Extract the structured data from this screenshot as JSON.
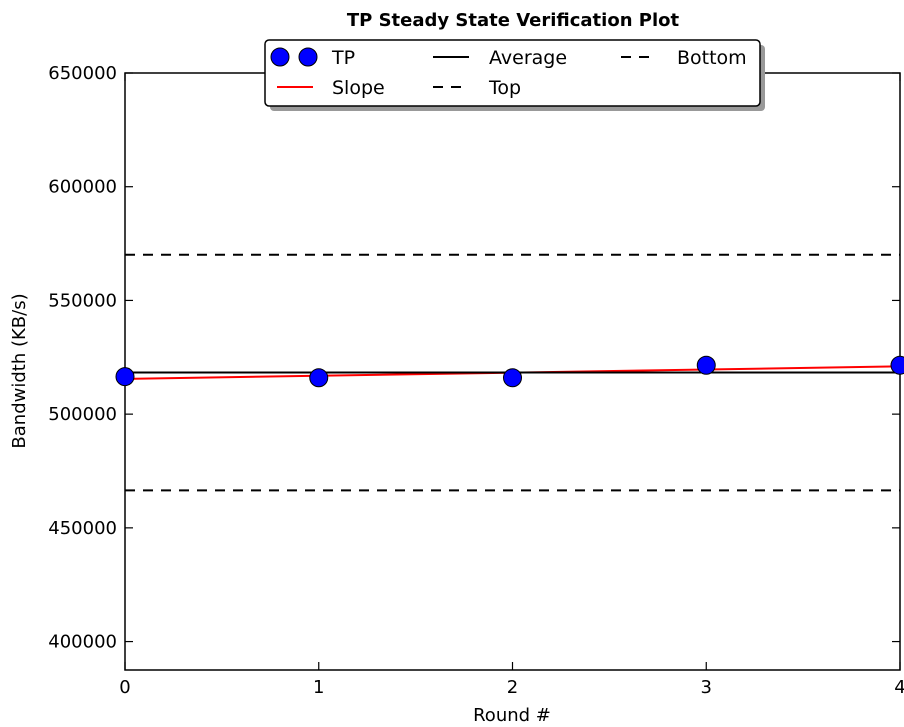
{
  "chart_data": {
    "type": "line",
    "title": "TP Steady State Verification Plot",
    "xlabel": "Round #",
    "ylabel": "Bandwidth (KB/s)",
    "xlim": [
      0,
      4
    ],
    "ylim": [
      387500,
      650000
    ],
    "xticks": [
      0,
      1,
      2,
      3,
      4
    ],
    "yticks": [
      400000,
      450000,
      500000,
      550000,
      600000,
      650000
    ],
    "xtick_labels": [
      "0",
      "1",
      "2",
      "3",
      "4"
    ],
    "ytick_labels": [
      "400000",
      "450000",
      "500000",
      "550000",
      "600000",
      "650000"
    ],
    "grid": false,
    "legend_position": "top-center",
    "series": [
      {
        "name": "TP",
        "style": "markers",
        "color": "#0000ff",
        "x": [
          0,
          1,
          2,
          3,
          4
        ],
        "y": [
          516500,
          516000,
          516000,
          521500,
          521500
        ]
      },
      {
        "name": "Slope",
        "style": "solid",
        "color": "#ff0000",
        "x": [
          0,
          4
        ],
        "y": [
          515500,
          521000
        ]
      },
      {
        "name": "Average",
        "style": "solid",
        "color": "#000000",
        "x": [
          0,
          4
        ],
        "y": [
          518300,
          518300
        ]
      },
      {
        "name": "Top",
        "style": "dashed",
        "color": "#000000",
        "x": [
          0,
          4
        ],
        "y": [
          570100,
          570100
        ]
      },
      {
        "name": "Bottom",
        "style": "dashed",
        "color": "#000000",
        "x": [
          0,
          4
        ],
        "y": [
          466500,
          466500
        ]
      }
    ]
  }
}
